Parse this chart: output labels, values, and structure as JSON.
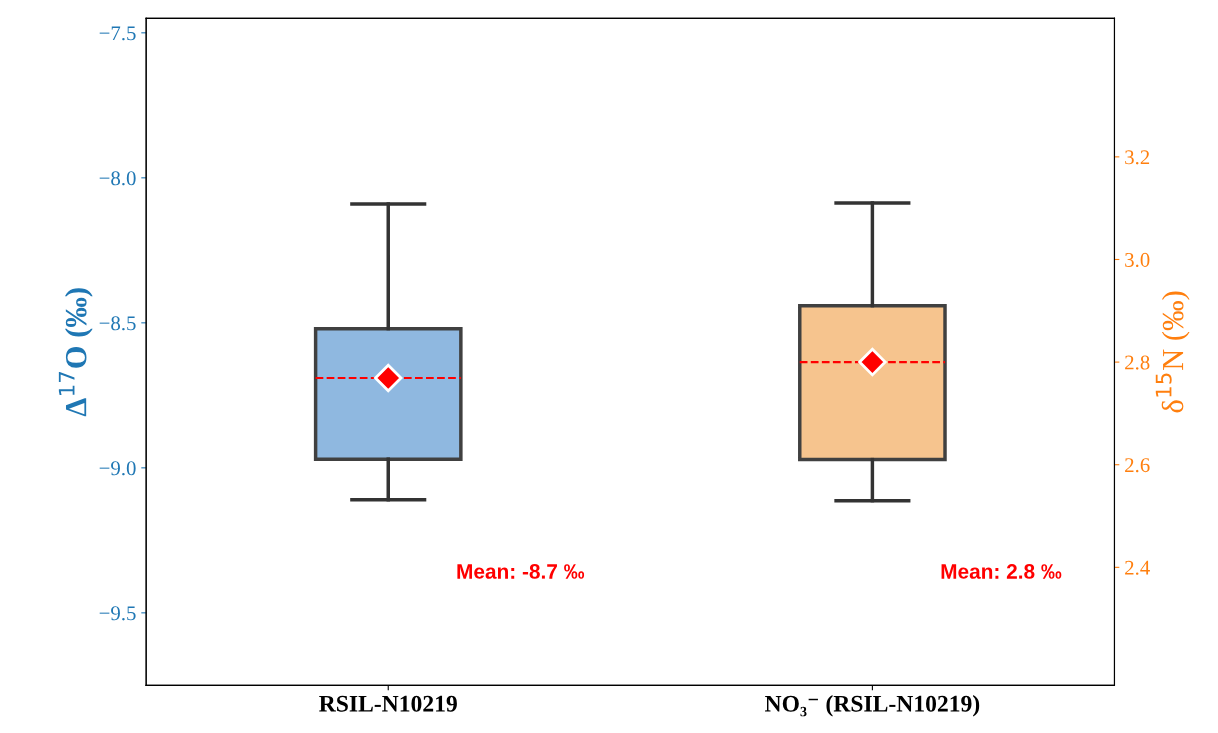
{
  "chart_data": {
    "type": "box",
    "categories": [
      "RSIL-N10219",
      "NO₃⁻ (RSIL-N10219)"
    ],
    "ylabel": "Δ$^{17}$O (‰)",
    "y2label": "δ$^{15}$N (‰)",
    "ylim": [
      -9.75,
      -7.45
    ],
    "yticks": [
      {
        "value": -9.5,
        "label": "−9.5"
      },
      {
        "value": -9.0,
        "label": "−9.0"
      },
      {
        "value": -8.5,
        "label": "−8.5"
      },
      {
        "value": -8.0,
        "label": "−8.0"
      },
      {
        "value": -7.5,
        "label": "−7.5"
      }
    ],
    "y2lim": [
      2.17,
      3.47
    ],
    "y2ticks": [
      2.4,
      2.6,
      2.8,
      {
        "value": 3.0,
        "label": "3.0"
      },
      3.2
    ],
    "series": [
      {
        "color": "#8fb8e0",
        "boxes": [
          {
            "low": -9.11,
            "q1": -8.97,
            "median": -8.69,
            "q3": -8.52,
            "high": -8.09,
            "mean": -8.69
          },
          null
        ]
      },
      {
        "color": "#f6c48e",
        "axis": "y2",
        "boxes": [
          null,
          {
            "low": 2.53,
            "q1": 2.61,
            "median": 2.8,
            "q3": 2.91,
            "high": 3.11,
            "mean": 2.8
          }
        ]
      }
    ],
    "annotations": [
      "Mean: -8.7 ‰",
      "Mean: 2.8 ‰"
    ],
    "grid": false
  }
}
